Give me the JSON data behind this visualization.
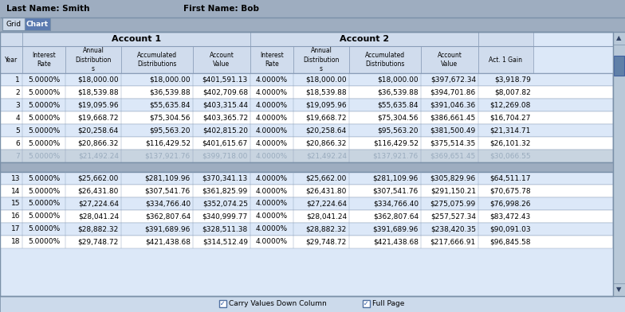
{
  "last_name": "Smith",
  "first_name": "Bob",
  "bg_color": "#9eadc0",
  "table_outer_bg": "#dce8f8",
  "table_header_bg": "#d0dced",
  "table_row_bg1": "#ffffff",
  "table_row_bg2": "#dce8f8",
  "table_row_faded_bg": "#c8d4e0",
  "table_row_faded_text": "#9aacbe",
  "table_row13_bg": "#c8d4e0",
  "table_row13_text": "#9aacbe",
  "footer_bg": "#ccdaeb",
  "grid_border": "#7a90a8",
  "col_header_border": "#8a9db8",
  "account1_header": "Account 1",
  "account2_header": "Account 2",
  "col_header_labels": [
    "Year",
    "Interest\nRate",
    "Annual\nDistribution\ns",
    "Accumulated\nDistributions",
    "Account\nValue",
    "Interest\nRate",
    "Annual\nDistribution\ns",
    "Accumulated\nDistributions",
    "Account\nValue",
    "Act. 1 Gain"
  ],
  "rows_top": [
    [
      "1",
      "5.0000%",
      "$18,000.00",
      "$18,000.00",
      "$401,591.13",
      "4.0000%",
      "$18,000.00",
      "$18,000.00",
      "$397,672.34",
      "$3,918.79"
    ],
    [
      "2",
      "5.0000%",
      "$18,539.88",
      "$36,539.88",
      "$402,709.68",
      "4.0000%",
      "$18,539.88",
      "$36,539.88",
      "$394,701.86",
      "$8,007.82"
    ],
    [
      "3",
      "5.0000%",
      "$19,095.96",
      "$55,635.84",
      "$403,315.44",
      "4.0000%",
      "$19,095.96",
      "$55,635.84",
      "$391,046.36",
      "$12,269.08"
    ],
    [
      "4",
      "5.0000%",
      "$19,668.72",
      "$75,304.56",
      "$403,365.72",
      "4.0000%",
      "$19,668.72",
      "$75,304.56",
      "$386,661.45",
      "$16,704.27"
    ],
    [
      "5",
      "5.0000%",
      "$20,258.64",
      "$95,563.20",
      "$402,815.20",
      "4.0000%",
      "$20,258.64",
      "$95,563.20",
      "$381,500.49",
      "$21,314.71"
    ],
    [
      "6",
      "5.0000%",
      "$20,866.32",
      "$116,429.52",
      "$401,615.67",
      "4.0000%",
      "$20,866.32",
      "$116,429.52",
      "$375,514.35",
      "$26,101.32"
    ]
  ],
  "row_faded": [
    "7",
    "5.0000%",
    "$21,492.24",
    "$137,921.76",
    "$399,718.00",
    "4.0000%",
    "$21,492.24",
    "$137,921.76",
    "$369,651.45",
    "$30,066.55"
  ],
  "rows_bottom": [
    [
      "13",
      "5.0000%",
      "$25,662.00",
      "$281,109.96",
      "$370,341.13",
      "4.0000%",
      "$25,662.00",
      "$281,109.96",
      "$305,829.96",
      "$64,511.17"
    ],
    [
      "14",
      "5.0000%",
      "$26,431.80",
      "$307,541.76",
      "$361,825.99",
      "4.0000%",
      "$26,431.80",
      "$307,541.76",
      "$291,150.21",
      "$70,675.78"
    ],
    [
      "15",
      "5.0000%",
      "$27,224.64",
      "$334,766.40",
      "$352,074.25",
      "4.0000%",
      "$27,224.64",
      "$334,766.40",
      "$275,075.99",
      "$76,998.26"
    ],
    [
      "16",
      "5.0000%",
      "$28,041.24",
      "$362,807.64",
      "$340,999.77",
      "4.0000%",
      "$28,041.24",
      "$362,807.64",
      "$257,527.34",
      "$83,472.43"
    ],
    [
      "17",
      "5.0000%",
      "$28,882.32",
      "$391,689.96",
      "$328,511.38",
      "4.0000%",
      "$28,882.32",
      "$391,689.96",
      "$238,420.35",
      "$90,091.03"
    ],
    [
      "18",
      "5.0000%",
      "$29,748.72",
      "$421,438.68",
      "$314,512.49",
      "4.0000%",
      "$29,748.72",
      "$421,438.68",
      "$217,666.91",
      "$96,845.58"
    ]
  ],
  "footer_text": "Carry Values Down Column",
  "footer_text2": "Full Page"
}
